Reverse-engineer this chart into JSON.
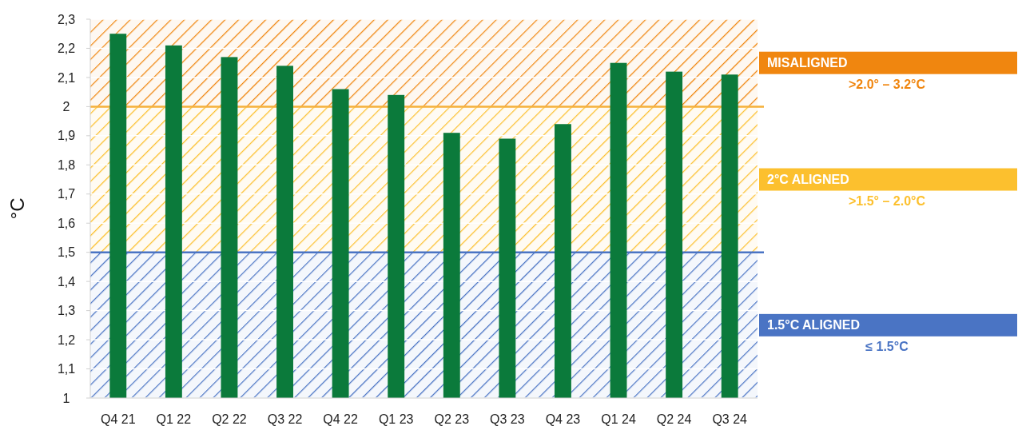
{
  "chart_data": {
    "type": "bar",
    "ylabel": "°C",
    "categories": [
      "Q4 21",
      "Q1 22",
      "Q2 22",
      "Q3 22",
      "Q4 22",
      "Q1 23",
      "Q2 23",
      "Q3 23",
      "Q4 23",
      "Q1 24",
      "Q2 24",
      "Q3 24"
    ],
    "values": [
      2.25,
      2.21,
      2.17,
      2.14,
      2.06,
      2.04,
      1.91,
      1.89,
      1.94,
      2.15,
      2.12,
      2.11
    ],
    "color": "#0b7a3b",
    "ylim": [
      1,
      2.3
    ],
    "yticks": [
      1,
      {
        "value": 1.1,
        "label": "1,1"
      },
      {
        "value": 1.2,
        "label": "1,2"
      },
      {
        "value": 1.3,
        "label": "1,3"
      },
      {
        "value": 1.4,
        "label": "1,4"
      },
      {
        "value": 1.5,
        "label": "1,5"
      },
      {
        "value": 1.6,
        "label": "1,6"
      },
      {
        "value": 1.7,
        "label": "1,7"
      },
      {
        "value": 1.8,
        "label": "1,8"
      },
      {
        "value": 1.9,
        "label": "1,9"
      },
      2,
      {
        "value": 2.1,
        "label": "2,1"
      },
      {
        "value": 2.2,
        "label": "2,2"
      },
      {
        "value": 2.3,
        "label": "2,3"
      }
    ],
    "grid": "y",
    "bands": [
      {
        "axis": "y",
        "from": 2,
        "to": 2.3,
        "label": "MISALIGNED",
        "color": "#f0860f"
      },
      {
        "axis": "y",
        "from": 1.5,
        "to": 2,
        "label": "2°C ALIGNED",
        "color": "#fcc02e"
      },
      {
        "axis": "y",
        "from": 1,
        "to": 1.5,
        "label": "1.5°C ALIGNED",
        "color": "#4a74c4"
      }
    ],
    "ref_lines": [
      {
        "axis": "y",
        "value": 2,
        "color": "#f5b03a"
      },
      {
        "axis": "y",
        "value": 1.5,
        "color": "#4a74c4"
      }
    ],
    "annotations": [
      ">2.0° – 3.2°C",
      ">1.5° – 2.0°C",
      "≤ 1.5°C"
    ]
  }
}
